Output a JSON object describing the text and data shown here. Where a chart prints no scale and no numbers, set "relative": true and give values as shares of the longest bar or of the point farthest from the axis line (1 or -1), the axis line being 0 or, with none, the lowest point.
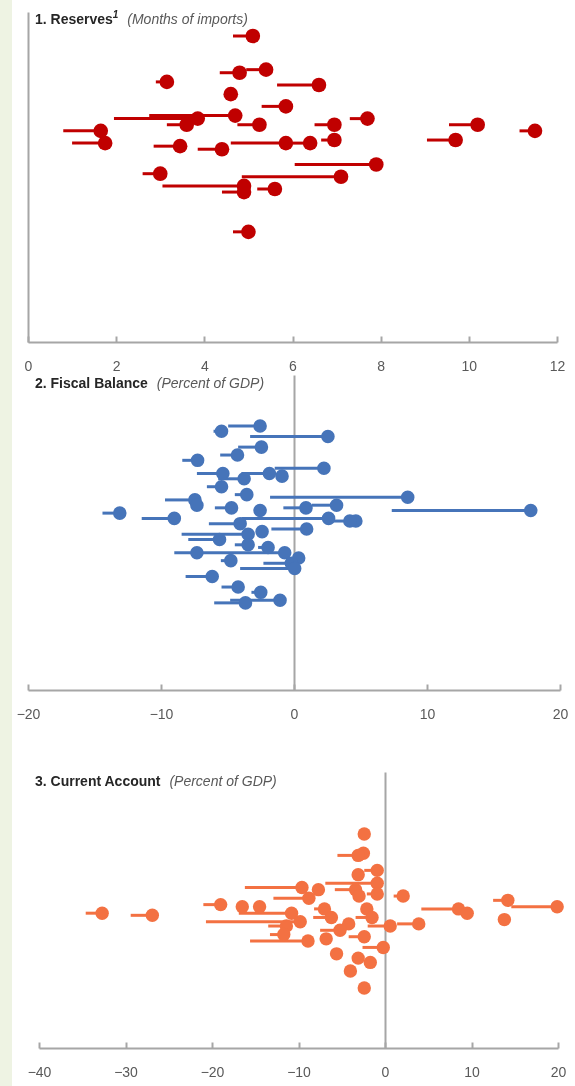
{
  "chart_data": [
    {
      "type": "scatter",
      "title": "1. Reserves$^{1}$",
      "subtitle": "(Months of imports)",
      "relative": true,
      "tick_labels": "x",
      "marker": "circle",
      "xlim": [
        0,
        12
      ],
      "xticks": [
        0,
        2,
        4,
        6,
        8,
        10,
        12
      ],
      "series": [
        {
          "color": "#c00000",
          "x": [
            5.1,
            5.4,
            4.8,
            3.15,
            6.6,
            4.6,
            5.85,
            4.7,
            7.7,
            3.85,
            10.2,
            3.6,
            5.25,
            6.95,
            1.65,
            11.5,
            9.7,
            6.95,
            6.4,
            1.75,
            5.85,
            3.45,
            4.4,
            7.9,
            3.0,
            7.1,
            4.9,
            5.6,
            4.9,
            5.0
          ],
          "values": [
            1.0,
            0.89,
            0.88,
            0.85,
            0.84,
            0.81,
            0.77,
            0.74,
            0.73,
            0.73,
            0.71,
            0.71,
            0.71,
            0.71,
            0.69,
            0.69,
            0.66,
            0.66,
            0.65,
            0.65,
            0.65,
            0.64,
            0.63,
            0.58,
            0.55,
            0.54,
            0.51,
            0.5,
            0.49,
            0.36
          ],
          "xerrors": [
            [
              4.65,
              5.1
            ],
            [
              4.95,
              5.4
            ],
            [
              4.35,
              4.8
            ],
            [
              2.9,
              3.15
            ],
            [
              5.65,
              6.6
            ],
            [
              4.45,
              4.6
            ],
            [
              5.3,
              5.85
            ],
            [
              2.75,
              4.7
            ],
            [
              7.3,
              7.7
            ],
            [
              1.95,
              3.85
            ],
            [
              9.55,
              10.2
            ],
            [
              3.15,
              3.6
            ],
            [
              4.75,
              5.25
            ],
            [
              6.5,
              6.95
            ],
            [
              0.8,
              1.65
            ],
            [
              11.15,
              11.5
            ],
            [
              9.05,
              9.7
            ],
            [
              6.65,
              6.95
            ],
            [
              6.0,
              6.4
            ],
            [
              1.0,
              1.75
            ],
            [
              4.6,
              5.85
            ],
            [
              2.85,
              3.45
            ],
            [
              3.85,
              4.4
            ],
            [
              6.05,
              7.9
            ],
            [
              2.6,
              3.0
            ],
            [
              4.85,
              7.1
            ],
            [
              3.05,
              4.9
            ],
            [
              5.2,
              5.6
            ],
            [
              4.4,
              4.9
            ],
            [
              4.65,
              5.0
            ]
          ]
        }
      ]
    },
    {
      "type": "scatter",
      "title": "2. Fiscal Balance",
      "subtitle": "(Percent of GDP)",
      "relative": true,
      "tick_labels": "x",
      "marker": "circle",
      "xlim": [
        -20,
        20
      ],
      "xticks": [
        {
          "value": -20,
          "label": "−20"
        },
        {
          "value": -10,
          "label": "−10"
        },
        0,
        10,
        20
      ],
      "series": [
        {
          "color": "#4674b9",
          "x": [
            -2.55,
            -5.45,
            2.55,
            -2.45,
            -4.25,
            -7.25,
            2.25,
            -1.85,
            -5.35,
            -0.9,
            -3.75,
            -5.45,
            -3.55,
            8.55,
            -7.45,
            -7.3,
            -4.7,
            0.9,
            3.2,
            17.8,
            -2.55,
            -13.1,
            -9.0,
            2.6,
            4.65,
            4.2,
            -4.05,
            0.95,
            -2.4,
            -3.45,
            -5.6,
            -3.45,
            -1.95,
            -0.7,
            -7.3,
            0.35,
            -4.75,
            -0.2,
            0.05,
            -6.15,
            -4.2,
            -2.5,
            -1.05,
            -3.65
          ],
          "values": [
            1.0,
            0.98,
            0.96,
            0.92,
            0.89,
            0.87,
            0.84,
            0.82,
            0.82,
            0.81,
            0.8,
            0.77,
            0.74,
            0.73,
            0.72,
            0.7,
            0.69,
            0.69,
            0.7,
            0.68,
            0.68,
            0.67,
            0.65,
            0.65,
            0.64,
            0.64,
            0.63,
            0.61,
            0.6,
            0.59,
            0.57,
            0.55,
            0.54,
            0.52,
            0.52,
            0.5,
            0.49,
            0.48,
            0.46,
            0.43,
            0.39,
            0.37,
            0.34,
            0.33
          ],
          "xerrors": [
            [
              -4.95,
              -2.55
            ],
            [
              -6.05,
              -5.45
            ],
            [
              -3.3,
              2.55
            ],
            [
              -4.2,
              -2.45
            ],
            [
              -5.55,
              -4.25
            ],
            [
              -8.4,
              -7.25
            ],
            [
              -1.45,
              2.25
            ],
            [
              -3.95,
              -1.85
            ],
            [
              -7.3,
              -5.35
            ],
            null,
            [
              -5.7,
              -3.75
            ],
            [
              -6.55,
              -5.45
            ],
            [
              -4.45,
              -3.55
            ],
            [
              -1.8,
              8.55
            ],
            [
              -9.7,
              -7.45
            ],
            null,
            [
              -5.95,
              -4.7
            ],
            [
              -0.8,
              0.9
            ],
            [
              1.35,
              3.2
            ],
            [
              7.35,
              17.8
            ],
            null,
            [
              -14.4,
              -13.1
            ],
            [
              -11.45,
              -9.0
            ],
            [
              -3.95,
              2.6
            ],
            null,
            [
              2.6,
              4.2
            ],
            [
              -6.4,
              -4.05
            ],
            [
              -1.7,
              0.95
            ],
            null,
            [
              -8.45,
              -3.45
            ],
            [
              -7.95,
              -5.6
            ],
            [
              -4.45,
              -3.45
            ],
            [
              -2.7,
              -1.95
            ],
            [
              -9.0,
              -0.7
            ],
            null,
            null,
            [
              -5.5,
              -4.75
            ],
            [
              -2.3,
              -0.2
            ],
            [
              -4.05,
              0.05
            ],
            [
              -8.15,
              -6.15
            ],
            [
              -5.45,
              -4.2
            ],
            [
              -3.2,
              -2.5
            ],
            [
              -4.8,
              -1.05
            ],
            [
              -6.0,
              -3.65
            ]
          ]
        }
      ]
    },
    {
      "type": "scatter",
      "title": "3. Current Account",
      "subtitle": "(Percent of GDP)",
      "relative": true,
      "tick_labels": "x",
      "marker": "circle",
      "xlim": [
        -40,
        20
      ],
      "xticks": [
        {
          "value": -40,
          "label": "−40"
        },
        {
          "value": -30,
          "label": "−30"
        },
        {
          "value": -20,
          "label": "−20"
        },
        {
          "value": -10,
          "label": "−10"
        },
        0,
        10,
        20
      ],
      "series": [
        {
          "color": "#f37142",
          "x": [
            -2.4,
            -2.5,
            -3.1,
            -0.9,
            -3.1,
            -0.9,
            -9.6,
            -7.7,
            -3.4,
            -0.9,
            -3.0,
            2.1,
            -8.8,
            14.2,
            -19.0,
            19.9,
            -16.5,
            -14.5,
            -2.1,
            -7.0,
            8.5,
            -32.7,
            -10.8,
            9.5,
            -26.9,
            -1.5,
            -6.2,
            13.8,
            -9.8,
            -4.2,
            3.9,
            0.6,
            -11.4,
            -5.2,
            -11.7,
            -2.4,
            -6.8,
            -8.9,
            -0.2,
            -5.6,
            -3.1,
            -1.7,
            -4.0,
            -2.4
          ],
          "values": [
            1.0,
            0.91,
            0.9,
            0.83,
            0.81,
            0.77,
            0.75,
            0.74,
            0.74,
            0.72,
            0.71,
            0.71,
            0.7,
            0.69,
            0.67,
            0.66,
            0.66,
            0.66,
            0.65,
            0.65,
            0.65,
            0.63,
            0.63,
            0.63,
            0.62,
            0.61,
            0.61,
            0.6,
            0.59,
            0.58,
            0.58,
            0.57,
            0.57,
            0.55,
            0.53,
            0.52,
            0.51,
            0.5,
            0.47,
            0.44,
            0.42,
            0.4,
            0.36,
            0.28
          ],
          "xerrors": [
            null,
            null,
            [
              -5.5,
              -3.1
            ],
            [
              -2.4,
              -0.9
            ],
            null,
            [
              -6.9,
              -0.9
            ],
            [
              -16.2,
              -9.6
            ],
            null,
            [
              -5.8,
              -3.4
            ],
            [
              -2.1,
              -0.9
            ],
            null,
            [
              1.0,
              2.1
            ],
            [
              -12.9,
              -8.8
            ],
            [
              12.5,
              14.2
            ],
            [
              -21.0,
              -19.0
            ],
            [
              14.6,
              19.9
            ],
            null,
            null,
            null,
            [
              -8.2,
              -7.0
            ],
            [
              4.2,
              8.5
            ],
            [
              -34.6,
              -32.7
            ],
            [
              -16.9,
              -10.8
            ],
            null,
            [
              -29.4,
              -26.9
            ],
            [
              -3.4,
              -1.5
            ],
            [
              -8.3,
              -6.2
            ],
            null,
            [
              -20.7,
              -9.8
            ],
            null,
            [
              1.4,
              3.9
            ],
            [
              -2.0,
              0.6
            ],
            [
              -13.5,
              -11.4
            ],
            [
              -7.5,
              -5.2
            ],
            [
              -13.3,
              -11.7
            ],
            [
              -4.2,
              -2.4
            ],
            null,
            [
              -15.6,
              -8.9
            ],
            [
              -2.6,
              -0.2
            ],
            null,
            null,
            null,
            null,
            null
          ]
        }
      ]
    }
  ]
}
